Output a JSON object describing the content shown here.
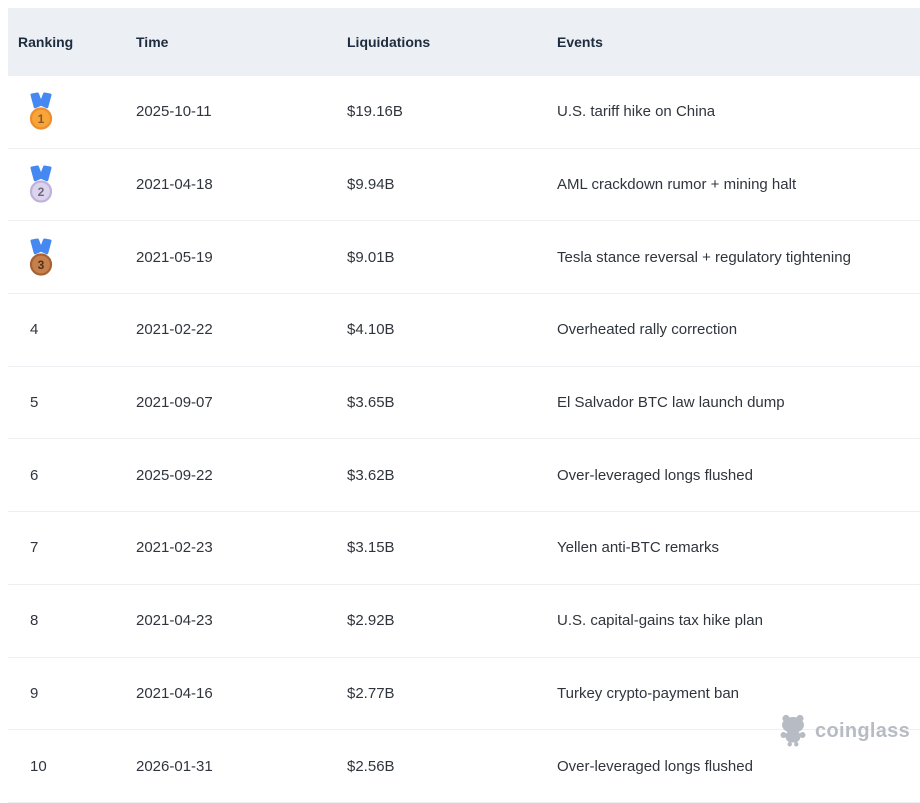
{
  "chart_data": {
    "type": "table",
    "columns": [
      "Ranking",
      "Time",
      "Liquidations",
      "Events"
    ],
    "rows": [
      {
        "ranking": 1,
        "medal": "gold",
        "time": "2025-10-11",
        "liquidations": "$19.16B",
        "events": "U.S. tariff hike on China"
      },
      {
        "ranking": 2,
        "medal": "silver",
        "time": "2021-04-18",
        "liquidations": "$9.94B",
        "events": "AML crackdown rumor + mining halt"
      },
      {
        "ranking": 3,
        "medal": "bronze",
        "time": "2021-05-19",
        "liquidations": "$9.01B",
        "events": "Tesla stance reversal + regulatory tightening"
      },
      {
        "ranking": 4,
        "time": "2021-02-22",
        "liquidations": "$4.10B",
        "events": "Overheated rally correction"
      },
      {
        "ranking": 5,
        "time": "2021-09-07",
        "liquidations": "$3.65B",
        "events": "El Salvador BTC law launch dump"
      },
      {
        "ranking": 6,
        "time": "2025-09-22",
        "liquidations": "$3.62B",
        "events": "Over-leveraged longs flushed"
      },
      {
        "ranking": 7,
        "time": "2021-02-23",
        "liquidations": "$3.15B",
        "events": "Yellen anti-BTC remarks"
      },
      {
        "ranking": 8,
        "time": "2021-04-23",
        "liquidations": "$2.92B",
        "events": "U.S. capital-gains tax hike plan"
      },
      {
        "ranking": 9,
        "time": "2021-04-16",
        "liquidations": "$2.77B",
        "events": "Turkey crypto-payment ban"
      },
      {
        "ranking": 10,
        "time": "2026-01-31",
        "liquidations": "$2.56B",
        "events": "Over-leveraged longs flushed"
      }
    ]
  },
  "watermark": {
    "label": "coinglass"
  },
  "colors": {
    "header_bg": "#eceff3",
    "header_text": "#1e2c3f",
    "cell_text": "#30353d",
    "row_border": "#edeff2",
    "watermark": "#b7bcc4"
  },
  "medals": {
    "ribbon": "#4688f1",
    "gold": {
      "fill": "#f7a43a",
      "stroke": "#ee8d2b",
      "num": "#875a1d"
    },
    "silver": {
      "fill": "#dcd4ec",
      "stroke": "#bfb2da",
      "num": "#6e6880"
    },
    "bronze": {
      "fill": "#c5804e",
      "stroke": "#a96133",
      "num": "#552f13"
    }
  }
}
